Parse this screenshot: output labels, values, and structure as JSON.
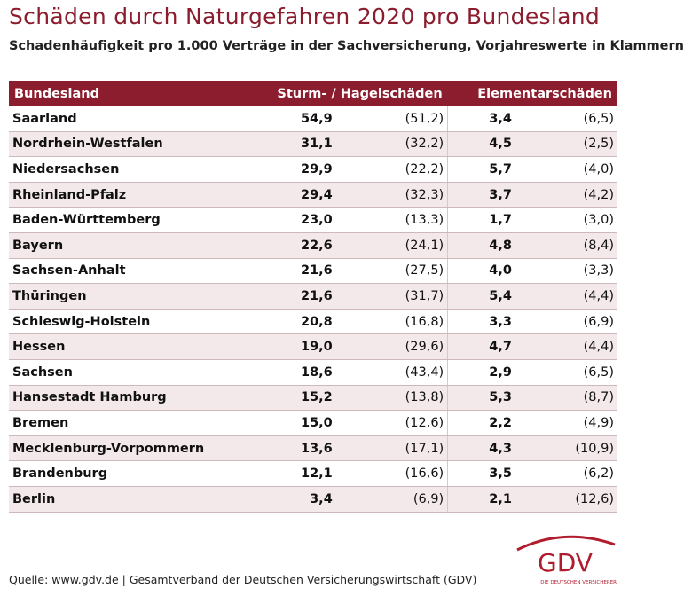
{
  "header": {
    "title": "Schäden durch Naturgefahren 2020 pro Bundesland",
    "subtitle": "Schadenhäufigkeit pro 1.000 Verträge in der Sachversicherung, Vorjahreswerte in Klammern"
  },
  "table": {
    "columns": [
      "Bundesland",
      "Sturm- / Hagelschäden",
      "Elementarschäden"
    ],
    "rows": [
      [
        "Saarland",
        "54,9",
        "(51,2)",
        "3,4",
        "(6,5)"
      ],
      [
        "Nordrhein-Westfalen",
        "31,1",
        "(32,2)",
        "4,5",
        "(2,5)"
      ],
      [
        "Niedersachsen",
        "29,9",
        "(22,2)",
        "5,7",
        "(4,0)"
      ],
      [
        "Rheinland-Pfalz",
        "29,4",
        "(32,3)",
        "3,7",
        "(4,2)"
      ],
      [
        "Baden-Württemberg",
        "23,0",
        "(13,3)",
        "1,7",
        "(3,0)"
      ],
      [
        "Bayern",
        "22,6",
        "(24,1)",
        "4,8",
        "(8,4)"
      ],
      [
        "Sachsen-Anhalt",
        "21,6",
        "(27,5)",
        "4,0",
        "(3,3)"
      ],
      [
        "Thüringen",
        "21,6",
        "(31,7)",
        "5,4",
        "(4,4)"
      ],
      [
        "Schleswig-Holstein",
        "20,8",
        "(16,8)",
        "3,3",
        "(6,9)"
      ],
      [
        "Hessen",
        "19,0",
        "(29,6)",
        "4,7",
        "(4,4)"
      ],
      [
        "Sachsen",
        "18,6",
        "(43,4)",
        "2,9",
        "(6,5)"
      ],
      [
        "Hansestadt Hamburg",
        "15,2",
        "(13,8)",
        "5,3",
        "(8,7)"
      ],
      [
        "Bremen",
        "15,0",
        "(12,6)",
        "2,2",
        "(4,9)"
      ],
      [
        "Mecklenburg-Vorpommern",
        "13,6",
        "(17,1)",
        "4,3",
        "(10,9)"
      ],
      [
        "Brandenburg",
        "12,1",
        "(16,6)",
        "3,5",
        "(6,2)"
      ],
      [
        "Berlin",
        "3,4",
        "(6,9)",
        "2,1",
        "(12,6)"
      ]
    ]
  },
  "footer": {
    "source": "Quelle: www.gdv.de | Gesamtverband der Deutschen Versicherungswirtschaft (GDV)",
    "logo": "GDV",
    "logo_tagline": "DIE DEUTSCHEN VERSICHERER"
  }
}
